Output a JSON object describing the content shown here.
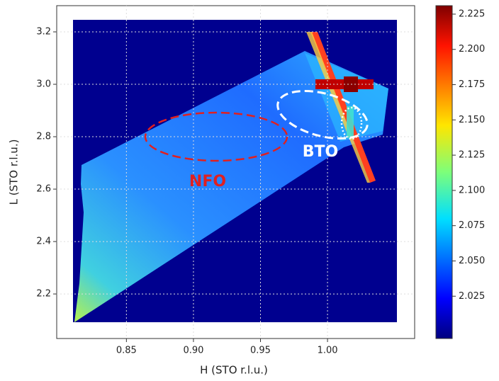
{
  "chart_data": {
    "type": "heatmap",
    "xlabel": "H (STO r.l.u.)",
    "ylabel": "L (STO r.l.u.)",
    "xlim": [
      0.798,
      1.065
    ],
    "ylim": [
      2.03,
      3.3
    ],
    "xticks": [
      0.85,
      {
        "value": 0.9,
        "label": "0.90"
      },
      0.95,
      {
        "value": 1,
        "label": "1.00"
      }
    ],
    "yticks": [
      {
        "value": 2.2,
        "label": "2.2"
      },
      {
        "value": 2.4,
        "label": "2.4"
      },
      {
        "value": 2.6,
        "label": "2.6"
      },
      {
        "value": 2.8,
        "label": "2.8"
      },
      {
        "value": 3,
        "label": "3.0"
      },
      {
        "value": 3.2,
        "label": "3.2"
      }
    ],
    "grid": true,
    "colorbar": {
      "clim": [
        1.995,
        2.231
      ],
      "ticks": [
        2.025,
        {
          "value": 2.05,
          "label": "2.050"
        },
        2.075,
        {
          "value": 2.1,
          "label": "2.100"
        },
        2.125,
        {
          "value": 2.15,
          "label": "2.150"
        },
        2.175,
        {
          "value": 2.2,
          "label": "2.200"
        },
        2.225
      ]
    },
    "annotations": [
      "NFO",
      "BTO"
    ]
  }
}
